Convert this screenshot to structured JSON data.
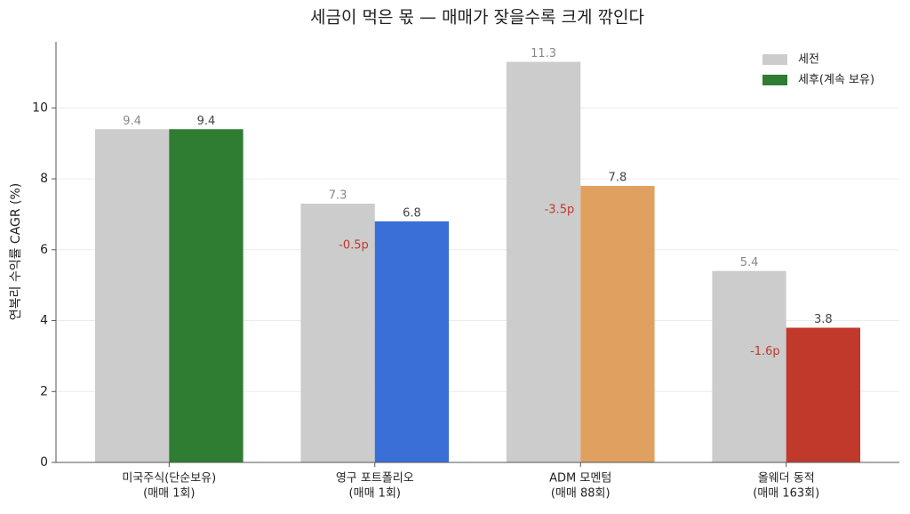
{
  "chart_data": {
    "type": "bar",
    "title": "세금이 먹은 몫 — 매매가 잦을수록 크게 깎인다",
    "ylabel": "연복리 수익률 CAGR (%)",
    "categories": [
      [
        "미국주식(단순보유)",
        "(매매 1회)"
      ],
      [
        "영구 포트폴리오",
        "(매매 1회)"
      ],
      [
        "ADM 모멘텀",
        "(매매 88회)"
      ],
      [
        "올웨더 동적",
        "(매매 163회)"
      ]
    ],
    "series": [
      {
        "name": "세전",
        "color": "#cccccc",
        "values": [
          9.4,
          7.3,
          11.3,
          5.4
        ]
      },
      {
        "name": "세후(계속 보유)",
        "color": "#2e7d32",
        "colors": [
          "#2e7d32",
          "#3a6fd8",
          "#e0a060",
          "#c0392b"
        ],
        "values": [
          9.4,
          6.8,
          7.8,
          3.8
        ]
      }
    ],
    "annotations": [
      null,
      "-0.5p",
      "-3.5p",
      "-1.6p"
    ],
    "annotation_color": "#c0392b",
    "ylim": [
      0,
      11.865
    ],
    "yticks": [
      0,
      2,
      4,
      6,
      8,
      10
    ],
    "grid": true,
    "legend": "upper right"
  }
}
